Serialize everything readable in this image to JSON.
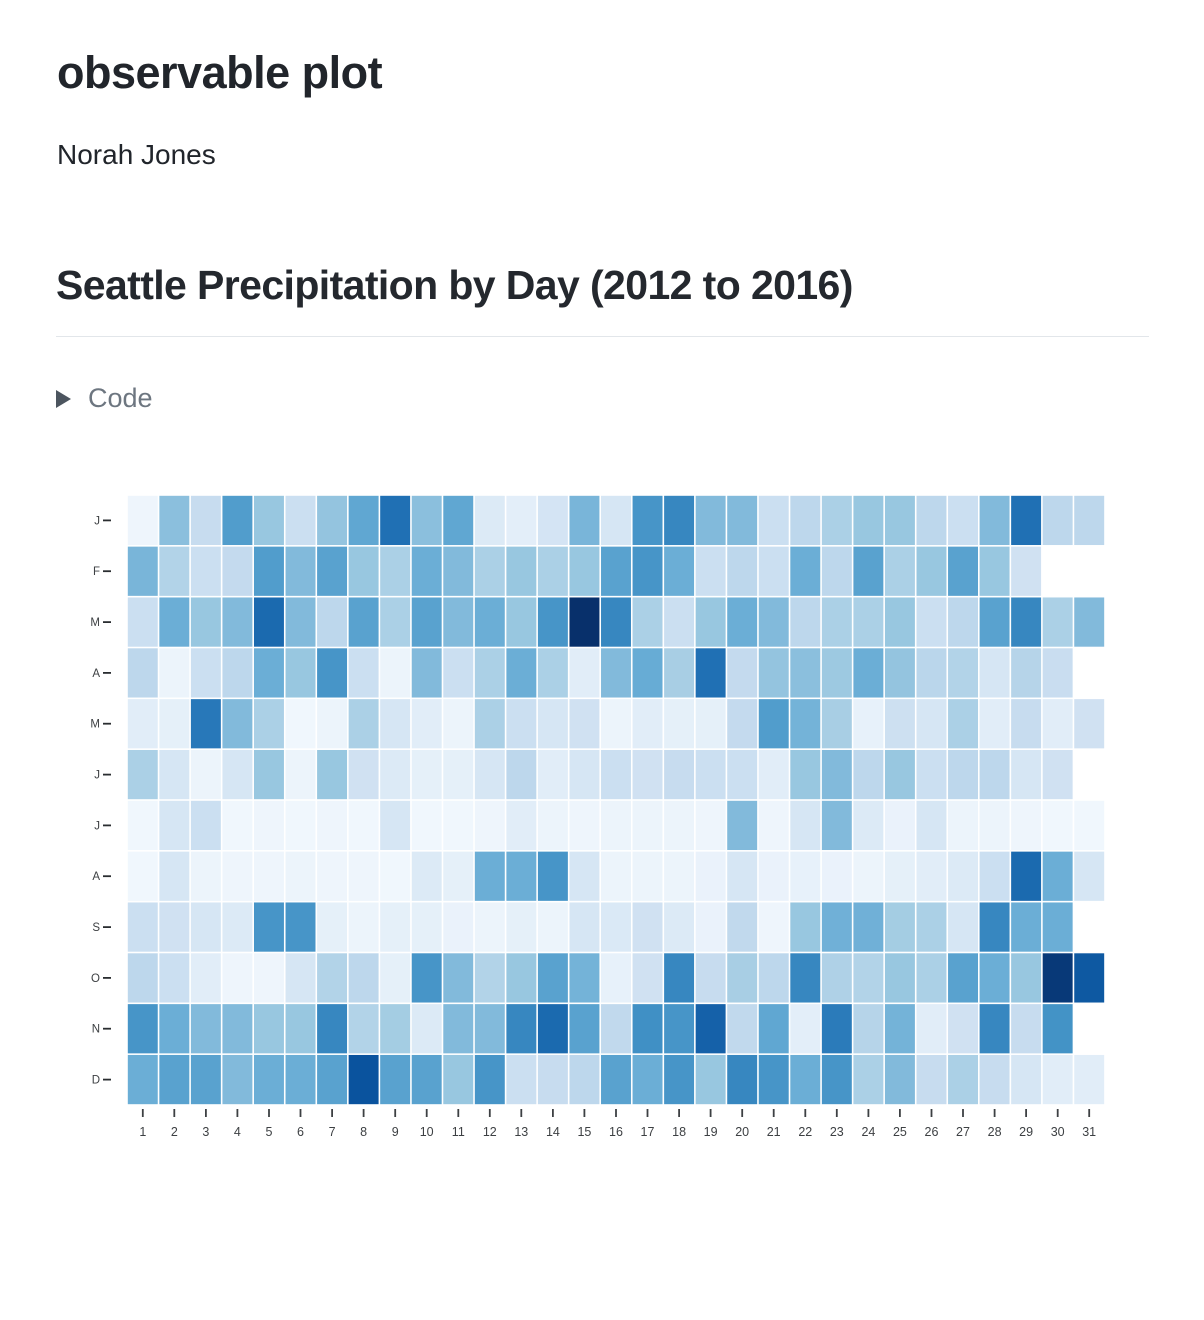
{
  "page": {
    "title": "observable plot",
    "author": "Norah Jones"
  },
  "section": {
    "heading": "Seattle Precipitation by Day (2012 to 2016)",
    "code_toggle": {
      "label": "Code",
      "state": "collapsed"
    }
  },
  "chart_data": {
    "type": "heatmap",
    "title": "Seattle Precipitation by Day (2012 to 2016)",
    "xlabel": "",
    "ylabel": "",
    "x_ticks": [
      "1",
      "2",
      "3",
      "4",
      "5",
      "6",
      "7",
      "8",
      "9",
      "10",
      "11",
      "12",
      "13",
      "14",
      "15",
      "16",
      "17",
      "18",
      "19",
      "20",
      "21",
      "22",
      "23",
      "24",
      "25",
      "26",
      "27",
      "28",
      "29",
      "30",
      "31"
    ],
    "y_categories": [
      "J",
      "F",
      "M",
      "A",
      "M",
      "J",
      "J",
      "A",
      "S",
      "O",
      "N",
      "D"
    ],
    "grid": false,
    "legend": "none",
    "value_scale": {
      "min": 0,
      "max": 9,
      "palette": [
        "#f7fbff",
        "#deebf7",
        "#c6dbef",
        "#9ecae1",
        "#6baed6",
        "#4292c6",
        "#2171b5",
        "#08519c",
        "#08306b"
      ],
      "description": "relative daily precipitation intensity (Blues color scale); null = date does not exist"
    },
    "rows": [
      {
        "month": "January",
        "label": "J",
        "values": [
          0.4,
          3.8,
          2.2,
          5.2,
          3.5,
          2,
          3.6,
          4.8,
          6.8,
          3.8,
          4.8,
          1.2,
          0.9,
          1.6,
          4.2,
          1.5,
          5.5,
          6,
          4,
          4,
          2,
          2.5,
          3,
          3.5,
          3.5,
          2.5,
          2,
          4,
          6.8,
          2.5,
          2.5
        ]
      },
      {
        "month": "February",
        "label": "F",
        "values": [
          4.2,
          2.8,
          2,
          2.3,
          5.2,
          4,
          5,
          3.5,
          3,
          4.5,
          4,
          3,
          3.5,
          3,
          3.5,
          5,
          5.5,
          4.5,
          2,
          2.5,
          2,
          4.5,
          2.5,
          5,
          3,
          3.5,
          5,
          3.5,
          1.8,
          null,
          null
        ]
      },
      {
        "month": "March",
        "label": "M",
        "values": [
          2,
          4.5,
          3.5,
          4,
          7,
          4,
          2.5,
          5,
          3,
          5,
          4,
          4.5,
          3.5,
          5.5,
          9,
          6,
          3,
          2,
          3.5,
          4.5,
          4,
          2.5,
          3,
          3,
          3.5,
          2,
          2.5,
          5,
          6,
          3,
          4
        ]
      },
      {
        "month": "April",
        "label": "A",
        "values": [
          2.5,
          0.5,
          2,
          2.5,
          4.5,
          3.5,
          5.5,
          2,
          0.5,
          4,
          2,
          3,
          4.5,
          3,
          1,
          4,
          4.6,
          3.1,
          6.8,
          2.3,
          3.6,
          3.8,
          3.4,
          4.5,
          3.6,
          2.6,
          2.8,
          1.5,
          2.7,
          2.1,
          null
        ]
      },
      {
        "month": "May",
        "label": "M",
        "values": [
          1,
          0.8,
          6.5,
          4,
          3,
          0.3,
          0.5,
          3,
          1.5,
          1,
          0.5,
          3,
          2,
          1.5,
          1.8,
          0.5,
          1,
          0.8,
          0.8,
          2.3,
          5.2,
          4.3,
          3.1,
          0.7,
          1.9,
          1.5,
          3,
          1,
          2.2,
          1,
          1.8
        ]
      },
      {
        "month": "June",
        "label": "J",
        "values": [
          3,
          1.5,
          0.5,
          1.5,
          3.5,
          0.5,
          3.5,
          1.8,
          1.2,
          0.8,
          0.8,
          1.5,
          2.5,
          1,
          1.5,
          2,
          1.8,
          2.2,
          2,
          2,
          1,
          3.5,
          4,
          2.5,
          3.5,
          2,
          2.5,
          2.5,
          1.5,
          1.8,
          null
        ]
      },
      {
        "month": "July",
        "label": "J",
        "values": [
          0.3,
          1.5,
          2,
          0.3,
          0.4,
          0.3,
          0.4,
          0.3,
          1.5,
          0.3,
          0.3,
          0.4,
          1,
          0.5,
          0.4,
          0.5,
          0.5,
          0.5,
          0.4,
          4,
          0.4,
          1.5,
          4,
          1.2,
          0.6,
          1.5,
          0.5,
          0.5,
          0.4,
          0.3,
          0.3
        ]
      },
      {
        "month": "August",
        "label": "A",
        "values": [
          0.3,
          1.5,
          0.5,
          0.4,
          0.4,
          0.5,
          0.4,
          0.4,
          0.3,
          1.2,
          0.8,
          4.5,
          4.5,
          5.5,
          1.5,
          0.5,
          0.5,
          0.5,
          0.6,
          1.5,
          0.6,
          0.7,
          0.6,
          0.5,
          0.8,
          1,
          1.2,
          2,
          7,
          4.5,
          1.5
        ]
      },
      {
        "month": "September",
        "label": "S",
        "values": [
          2,
          1.8,
          1.5,
          1.2,
          5.5,
          5.5,
          0.8,
          0.5,
          0.8,
          0.8,
          0.6,
          0.5,
          0.8,
          0.5,
          1.5,
          1.3,
          1.8,
          1.2,
          0.6,
          2.4,
          0.4,
          3.5,
          4.4,
          4.4,
          3.2,
          3,
          1.5,
          6,
          4.5,
          4.5,
          null
        ]
      },
      {
        "month": "October",
        "label": "O",
        "values": [
          2.5,
          2,
          1,
          0.4,
          0.4,
          1.5,
          2.8,
          2.5,
          0.8,
          5.5,
          4,
          2.8,
          3.5,
          5,
          4.3,
          0.7,
          1.8,
          6,
          2.2,
          3.1,
          2.5,
          6,
          2.9,
          2.8,
          3.5,
          3,
          5,
          4.5,
          3.5,
          8.7,
          7.6
        ]
      },
      {
        "month": "November",
        "label": "N",
        "values": [
          5.5,
          4.5,
          4,
          4,
          3.5,
          3.5,
          6,
          2.8,
          3.2,
          1.2,
          4,
          4,
          6,
          7,
          5,
          2.4,
          5.7,
          5.5,
          7.3,
          2.4,
          4.8,
          0.9,
          6.4,
          2.7,
          4.3,
          1,
          1.8,
          6,
          2.2,
          5.6,
          null
        ]
      },
      {
        "month": "December",
        "label": "D",
        "values": [
          4.5,
          5,
          5,
          4,
          4.5,
          4.5,
          5,
          7.8,
          5,
          5,
          3.5,
          5.5,
          2,
          2.2,
          2.5,
          5,
          4.5,
          5.5,
          3.5,
          6,
          5.5,
          4.5,
          5.5,
          3,
          4,
          2.2,
          3,
          2.2,
          1.5,
          1,
          1
        ]
      }
    ]
  }
}
